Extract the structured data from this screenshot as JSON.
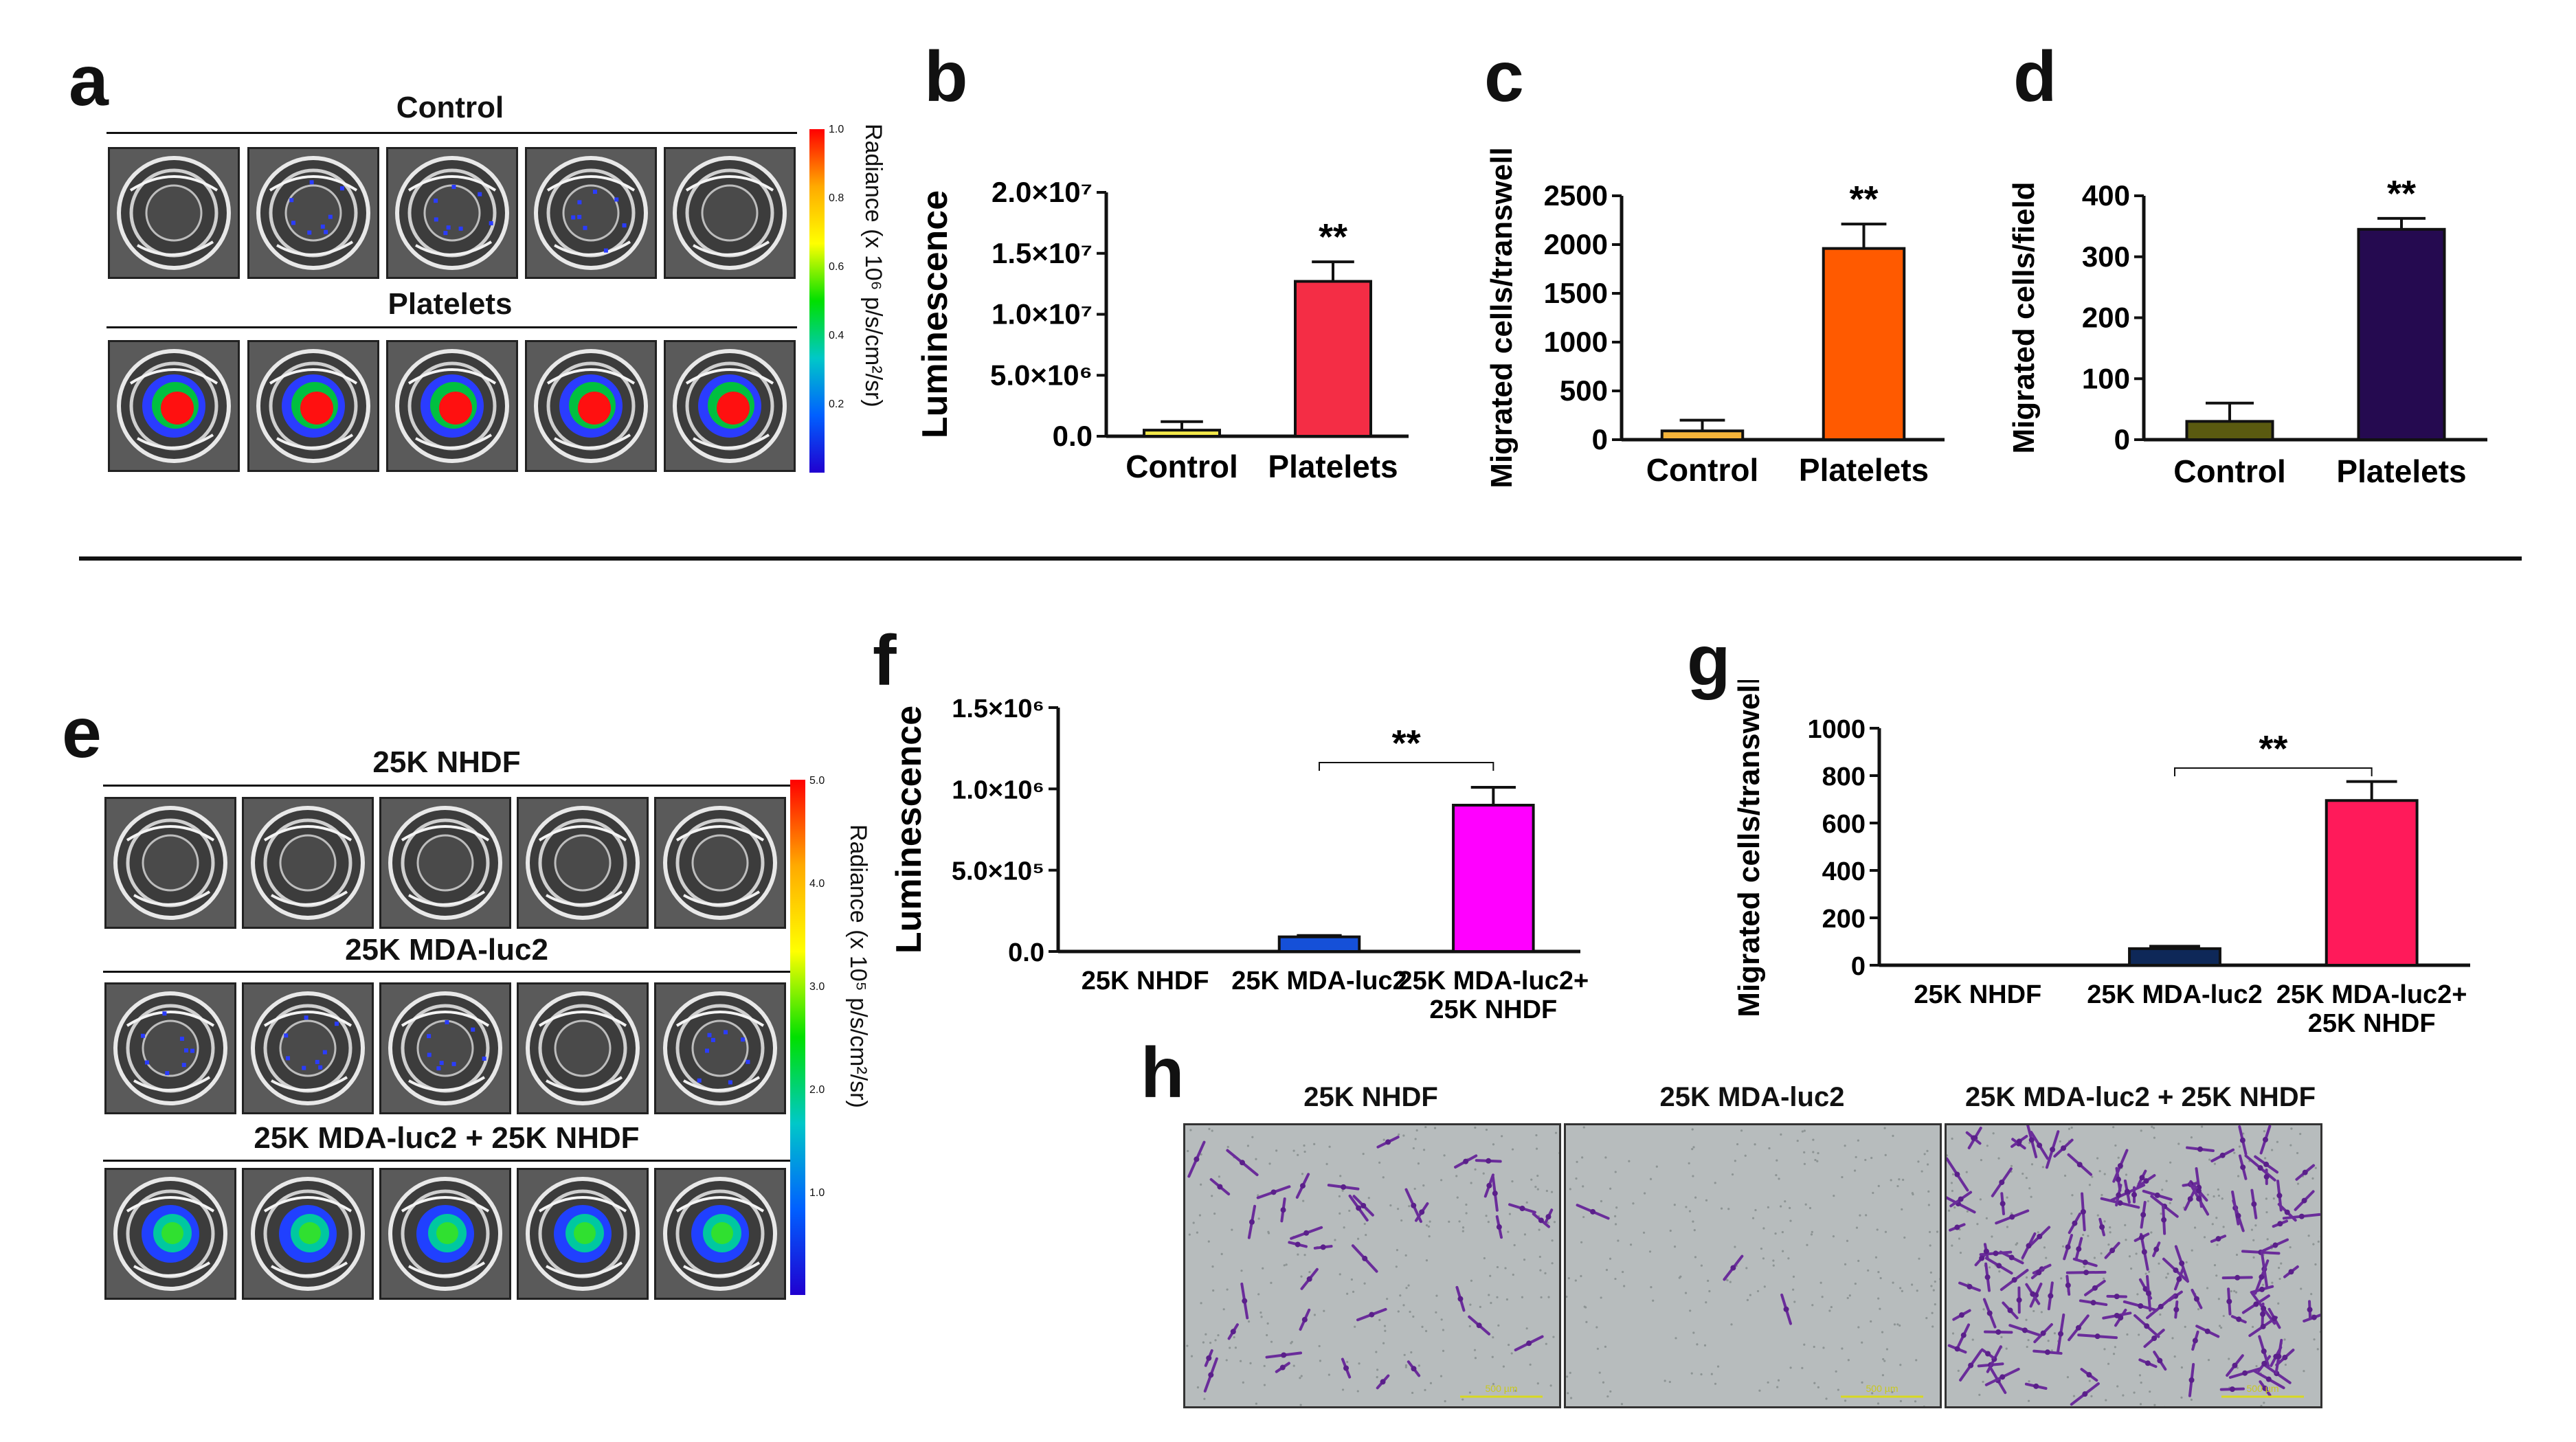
{
  "panels": {
    "a": {
      "label": "a",
      "rows": [
        "Control",
        "Platelets"
      ],
      "colorbar": "Radiance (x 10⁶ p/s/cm²/sr)",
      "colorbar_ticks": [
        "1.0",
        "0.8",
        "0.6",
        "0.4",
        "0.2"
      ]
    },
    "b": {
      "label": "b"
    },
    "c": {
      "label": "c"
    },
    "d": {
      "label": "d"
    },
    "e": {
      "label": "e",
      "rows": [
        "25K NHDF",
        "25K MDA-luc2",
        "25K MDA-luc2 + 25K NHDF"
      ],
      "colorbar": "Radiance (x 10⁵ p/s/cm²/sr)",
      "colorbar_ticks": [
        "5.0",
        "4.0",
        "3.0",
        "2.0",
        "1.0"
      ]
    },
    "f": {
      "label": "f"
    },
    "g": {
      "label": "g"
    },
    "h": {
      "label": "h",
      "titles": [
        "25K NHDF",
        "25K MDA-luc2",
        "25K MDA-luc2 + 25K NHDF"
      ],
      "scale": "500 µm"
    }
  },
  "chart_data": [
    {
      "id": "b",
      "type": "bar",
      "categories": [
        "Control",
        "Platelets"
      ],
      "values": [
        500000,
        12700000
      ],
      "errors": [
        700000,
        1600000
      ],
      "ylabel": "Luminescence",
      "ylim": [
        0,
        20000000
      ],
      "yticks": [
        "0.0",
        "5.0×10⁶",
        "1.0×10⁷",
        "1.5×10⁷",
        "2.0×10⁷"
      ],
      "ytick_values": [
        0,
        5000000,
        10000000,
        15000000,
        20000000
      ],
      "colors": [
        "#f3e84a",
        "#f42d45"
      ],
      "sig": "**"
    },
    {
      "id": "c",
      "type": "bar",
      "categories": [
        "Control",
        "Platelets"
      ],
      "values": [
        90,
        1960
      ],
      "errors": [
        110,
        250
      ],
      "ylabel": "Migrated cells/transwell",
      "ylim": [
        0,
        2500
      ],
      "yticks": [
        "0",
        "500",
        "1000",
        "1500",
        "2000",
        "2500"
      ],
      "ytick_values": [
        0,
        500,
        1000,
        1500,
        2000,
        2500
      ],
      "colors": [
        "#f5b43a",
        "#ff5a00"
      ],
      "sig": "**"
    },
    {
      "id": "d",
      "type": "bar",
      "categories": [
        "Control",
        "Platelets"
      ],
      "values": [
        30,
        345
      ],
      "errors": [
        30,
        18
      ],
      "ylabel": "Migrated cells/field",
      "ylim": [
        0,
        400
      ],
      "yticks": [
        "0",
        "100",
        "200",
        "300",
        "400"
      ],
      "ytick_values": [
        0,
        100,
        200,
        300,
        400
      ],
      "colors": [
        "#5a5a10",
        "#250a50"
      ],
      "sig": "**"
    },
    {
      "id": "f",
      "type": "bar",
      "categories": [
        "25K NHDF",
        "25K MDA-luc2",
        "25K MDA-luc2+\n25K NHDF"
      ],
      "values": [
        0,
        90000,
        900000
      ],
      "errors": [
        0,
        8000,
        110000
      ],
      "ylabel": "Luminescence",
      "ylim": [
        0,
        1500000
      ],
      "yticks": [
        "0.0",
        "5.0×10⁵",
        "1.0×10⁶",
        "1.5×10⁶"
      ],
      "ytick_values": [
        0,
        500000,
        1000000,
        1500000
      ],
      "colors": [
        "#888888",
        "#1550d8",
        "#ff00ff"
      ],
      "sig": "**",
      "sig_pair": [
        1,
        2
      ]
    },
    {
      "id": "g",
      "type": "bar",
      "categories": [
        "25K NHDF",
        "25K MDA-luc2",
        "25K MDA-luc2+\n25K NHDF"
      ],
      "values": [
        0,
        70,
        695
      ],
      "errors": [
        0,
        10,
        80
      ],
      "ylabel": "Migrated cells/transwell",
      "ylim": [
        0,
        1000
      ],
      "yticks": [
        "0",
        "200",
        "400",
        "600",
        "800",
        "1000"
      ],
      "ytick_values": [
        0,
        200,
        400,
        600,
        800,
        1000
      ],
      "colors": [
        "#888888",
        "#0e2858",
        "#ff1a5a"
      ],
      "sig": "**",
      "sig_pair": [
        1,
        2
      ]
    }
  ]
}
